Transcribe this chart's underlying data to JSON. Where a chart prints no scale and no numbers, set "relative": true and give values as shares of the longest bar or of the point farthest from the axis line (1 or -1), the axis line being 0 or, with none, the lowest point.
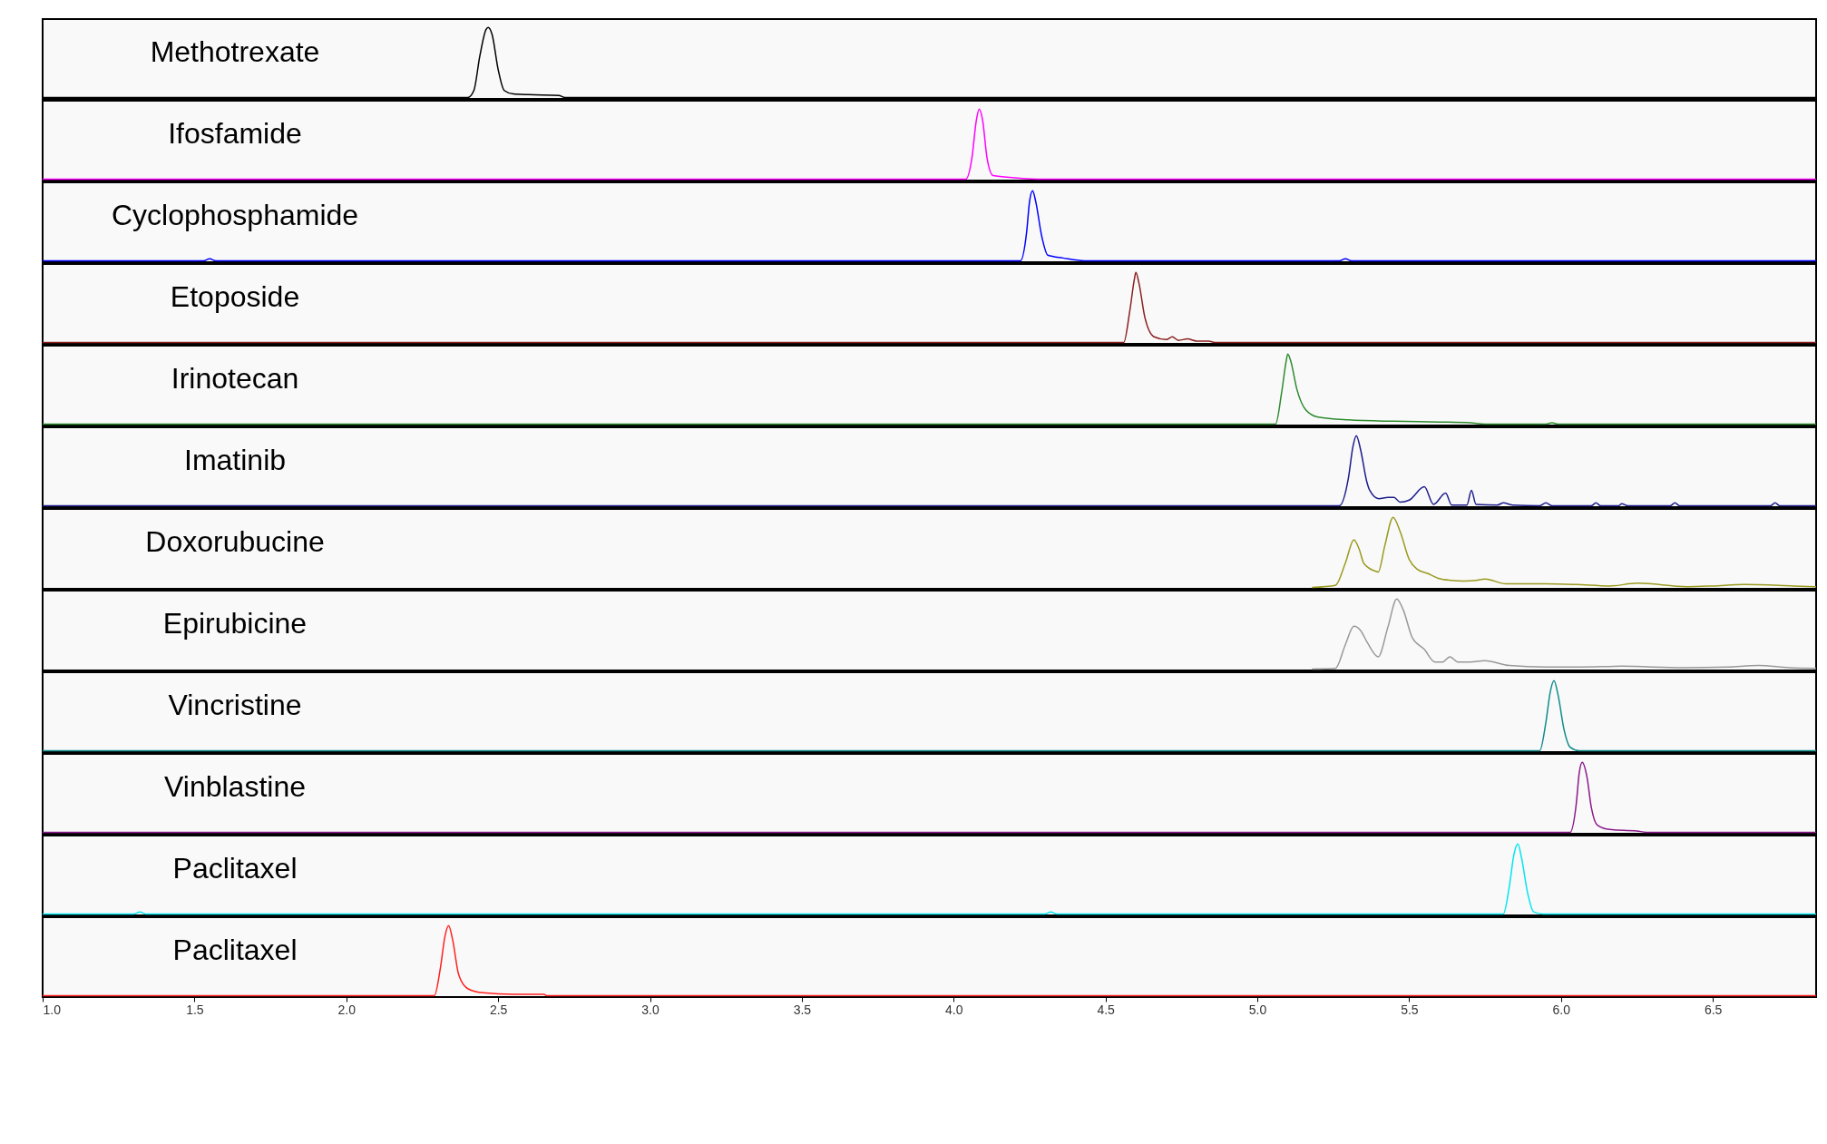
{
  "chart_data": [
    {
      "type": "line",
      "relative": true,
      "xlim": [
        1.0,
        6.84
      ],
      "tick_labels": false,
      "series": [
        {
          "name": "Methotrexate",
          "color": "#000000",
          "x": [
            1.0,
            2.4,
            2.42,
            2.44,
            2.46,
            2.467,
            2.48,
            2.5,
            2.52,
            2.55,
            2.6,
            2.7,
            2.72,
            6.84
          ],
          "values": [
            0,
            0,
            0.1,
            0.6,
            0.97,
            1,
            0.9,
            0.4,
            0.1,
            0.05,
            0.04,
            0.03,
            0,
            0
          ]
        }
      ]
    },
    {
      "type": "line",
      "relative": true,
      "xlim": [
        1.0,
        6.84
      ],
      "tick_labels": false,
      "series": [
        {
          "name": "Ifosfamide",
          "color": "#ff00ff",
          "x": [
            1.0,
            4.04,
            4.06,
            4.075,
            4.084,
            4.095,
            4.11,
            4.13,
            4.2,
            4.3,
            6.84
          ],
          "values": [
            0,
            0,
            0.3,
            0.85,
            1,
            0.85,
            0.3,
            0.05,
            0.02,
            0,
            0
          ]
        }
      ]
    },
    {
      "type": "line",
      "relative": true,
      "xlim": [
        1.0,
        6.84
      ],
      "tick_labels": false,
      "series": [
        {
          "name": "Cyclophosphamide",
          "color": "#0000ff",
          "x": [
            1.0,
            1.53,
            1.55,
            1.57,
            4.22,
            4.24,
            4.25,
            4.26,
            4.27,
            4.29,
            4.31,
            4.36,
            4.43,
            5.27,
            5.29,
            5.31,
            6.84
          ],
          "values": [
            0,
            0,
            0.03,
            0,
            0,
            0.4,
            0.85,
            1,
            0.85,
            0.35,
            0.08,
            0.04,
            0,
            0,
            0.03,
            0,
            0
          ]
        }
      ]
    },
    {
      "type": "line",
      "relative": true,
      "xlim": [
        1.0,
        6.84
      ],
      "tick_labels": false,
      "series": [
        {
          "name": "Etoposide",
          "color": "#8b2020",
          "x": [
            1.0,
            4.56,
            4.58,
            4.595,
            4.6,
            4.61,
            4.63,
            4.66,
            4.7,
            4.72,
            4.74,
            4.77,
            4.8,
            4.84,
            4.86,
            6.84
          ],
          "values": [
            0,
            0,
            0.45,
            0.9,
            1,
            0.85,
            0.35,
            0.08,
            0.04,
            0.08,
            0.03,
            0.05,
            0.02,
            0.02,
            0,
            0
          ]
        }
      ]
    },
    {
      "type": "line",
      "relative": true,
      "xlim": [
        1.0,
        6.84
      ],
      "tick_labels": false,
      "series": [
        {
          "name": "Irinotecan",
          "color": "#2e8b2e",
          "x": [
            1.0,
            5.06,
            5.08,
            5.095,
            5.1,
            5.11,
            5.13,
            5.16,
            5.2,
            5.3,
            5.45,
            5.6,
            5.7,
            5.75,
            5.95,
            5.97,
            5.99,
            6.84
          ],
          "values": [
            0,
            0,
            0.45,
            0.9,
            1,
            0.9,
            0.5,
            0.2,
            0.1,
            0.06,
            0.04,
            0.03,
            0.02,
            0,
            0,
            0.02,
            0,
            0
          ]
        }
      ]
    },
    {
      "type": "line",
      "relative": true,
      "xlim": [
        1.0,
        6.84
      ],
      "tick_labels": false,
      "series": [
        {
          "name": "Imatinib",
          "color": "#1c1c8c",
          "x": [
            1.0,
            5.27,
            5.3,
            5.315,
            5.326,
            5.34,
            5.36,
            5.37,
            5.4,
            5.43,
            5.45,
            5.47,
            5.5,
            5.55,
            5.58,
            5.62,
            5.64,
            5.69,
            5.705,
            5.72,
            5.79,
            5.81,
            5.84,
            5.93,
            5.95,
            5.97,
            6.1,
            6.115,
            6.13,
            6.19,
            6.2,
            6.22,
            6.36,
            6.375,
            6.39,
            6.69,
            6.705,
            6.72,
            6.84
          ],
          "values": [
            0,
            0,
            0.4,
            0.85,
            1,
            0.8,
            0.35,
            0.22,
            0.1,
            0.12,
            0.12,
            0.05,
            0.08,
            0.27,
            0.02,
            0.18,
            0.01,
            0.01,
            0.22,
            0.02,
            0.01,
            0.04,
            0.01,
            0,
            0.04,
            0,
            0,
            0.04,
            0,
            0,
            0.03,
            0,
            0,
            0.04,
            0,
            0,
            0.04,
            0,
            0
          ]
        }
      ]
    },
    {
      "type": "line",
      "relative": true,
      "xlim": [
        1.0,
        6.84
      ],
      "tick_labels": false,
      "series": [
        {
          "name": "Doxorubucine",
          "color": "#9a9a20",
          "x": [
            5.18,
            5.257,
            5.29,
            5.318,
            5.335,
            5.351,
            5.39,
            5.398,
            5.42,
            5.447,
            5.47,
            5.5,
            5.526,
            5.56,
            5.596,
            5.64,
            5.678,
            5.72,
            5.75,
            5.819,
            5.948,
            6.05,
            6.16,
            6.252,
            6.416,
            6.5,
            6.603,
            6.767,
            6.84
          ],
          "values": [
            0,
            0.03,
            0.35,
            0.68,
            0.55,
            0.34,
            0.23,
            0.22,
            0.6,
            1,
            0.8,
            0.4,
            0.26,
            0.2,
            0.13,
            0.1,
            0.09,
            0.1,
            0.12,
            0.05,
            0.05,
            0.04,
            0.02,
            0.06,
            0.01,
            0.02,
            0.04,
            0.02,
            0.01
          ]
        }
      ]
    },
    {
      "type": "line",
      "relative": true,
      "xlim": [
        1.0,
        6.84
      ],
      "tick_labels": false,
      "series": [
        {
          "name": "Epirubicine",
          "color": "#999999",
          "x": [
            5.18,
            5.257,
            5.29,
            5.318,
            5.34,
            5.362,
            5.398,
            5.43,
            5.459,
            5.48,
            5.51,
            5.55,
            5.585,
            5.61,
            5.634,
            5.66,
            5.7,
            5.749,
            5.83,
            5.95,
            6.065,
            6.2,
            6.4,
            6.55,
            6.65,
            6.75,
            6.84
          ],
          "values": [
            0,
            0.01,
            0.35,
            0.61,
            0.55,
            0.38,
            0.175,
            0.6,
            1,
            0.85,
            0.45,
            0.28,
            0.1,
            0.1,
            0.175,
            0.1,
            0.1,
            0.12,
            0.05,
            0.03,
            0.03,
            0.04,
            0.02,
            0.03,
            0.05,
            0.02,
            0.01
          ]
        }
      ]
    },
    {
      "type": "line",
      "relative": true,
      "xlim": [
        1.0,
        6.84
      ],
      "tick_labels": false,
      "series": [
        {
          "name": "Vincristine",
          "color": "#108c8c",
          "x": [
            1.0,
            5.93,
            5.95,
            5.965,
            5.977,
            5.99,
            6.01,
            6.03,
            6.06,
            6.84
          ],
          "values": [
            0,
            0,
            0.4,
            0.85,
            1,
            0.8,
            0.3,
            0.05,
            0,
            0
          ]
        }
      ]
    },
    {
      "type": "line",
      "relative": true,
      "xlim": [
        1.0,
        6.84
      ],
      "tick_labels": false,
      "series": [
        {
          "name": "Vinblastine",
          "color": "#8b1a8b",
          "x": [
            1.0,
            6.03,
            6.05,
            6.06,
            6.07,
            6.085,
            6.1,
            6.12,
            6.16,
            6.25,
            6.28,
            6.84
          ],
          "values": [
            0,
            0,
            0.4,
            0.85,
            1,
            0.8,
            0.35,
            0.1,
            0.04,
            0.02,
            0,
            0
          ]
        }
      ]
    },
    {
      "type": "line",
      "relative": true,
      "xlim": [
        1.0,
        6.84
      ],
      "tick_labels": false,
      "series": [
        {
          "name": "Paclitaxel",
          "color": "#00e5ee",
          "x": [
            1.0,
            1.3,
            1.32,
            1.34,
            4.3,
            4.32,
            4.34,
            5.81,
            5.83,
            5.845,
            5.858,
            5.87,
            5.89,
            5.91,
            5.94,
            6.84
          ],
          "values": [
            0,
            0,
            0.03,
            0,
            0,
            0.03,
            0,
            0,
            0.4,
            0.85,
            1,
            0.8,
            0.3,
            0.03,
            0,
            0
          ]
        }
      ]
    },
    {
      "type": "line",
      "relative": true,
      "xlim": [
        1.0,
        6.84
      ],
      "tick_labels": "x",
      "xticks": [
        {
          "value": 1,
          "label": "1.0"
        },
        1.5,
        {
          "value": 2,
          "label": "2.0"
        },
        2.5,
        {
          "value": 3,
          "label": "3.0"
        },
        3.5,
        {
          "value": 4,
          "label": "4.0"
        },
        4.5,
        {
          "value": 5,
          "label": "5.0"
        },
        5.5,
        {
          "value": 6,
          "label": "6.0"
        },
        6.5
      ],
      "series": [
        {
          "name": "Paclitaxel",
          "color": "#ff2020",
          "x": [
            1.0,
            2.29,
            2.31,
            2.325,
            2.337,
            2.35,
            2.37,
            2.4,
            2.45,
            2.55,
            2.65,
            2.66,
            6.84
          ],
          "values": [
            0,
            0,
            0.4,
            0.85,
            1,
            0.8,
            0.3,
            0.1,
            0.04,
            0.02,
            0.02,
            0,
            0
          ]
        }
      ]
    }
  ]
}
